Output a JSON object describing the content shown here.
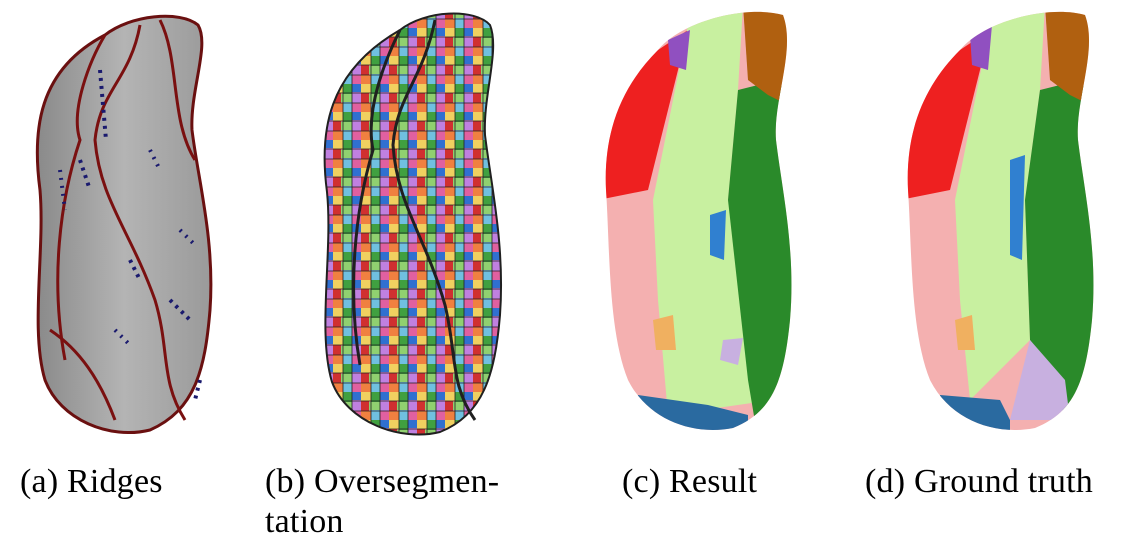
{
  "figure": {
    "panels": [
      {
        "id": "a",
        "caption": "(a) Ridges",
        "colors": {
          "surface": "#a8a8a8",
          "ridge": "#7a1010",
          "valley": "#1a1a6e"
        }
      },
      {
        "id": "b",
        "caption_line1": "(b)  Oversegmen-",
        "caption_line2": "tation",
        "colors": {
          "palette": [
            "#e8a0a0",
            "#f0d060",
            "#40a040",
            "#3070d0",
            "#d03030",
            "#90d070",
            "#c080e0",
            "#f08040",
            "#70c0e0",
            "#e060a0",
            "#a0e0a0",
            "#202020"
          ]
        }
      },
      {
        "id": "c",
        "caption": "(c) Result",
        "colors": {
          "red": "#ee2020",
          "pink": "#f4b0b0",
          "lightgreen": "#c8f0a0",
          "darkgreen": "#2a8a2a",
          "brown": "#b06010",
          "purple": "#9050c0",
          "blue": "#3080d0",
          "orange": "#f0b060",
          "lavender": "#c8b0e0",
          "steelblue": "#2a6aa0"
        }
      },
      {
        "id": "d",
        "caption": "(d) Ground truth",
        "colors": {
          "red": "#ee2020",
          "pink": "#f4b0b0",
          "lightgreen": "#c8f0a0",
          "darkgreen": "#2a8a2a",
          "brown": "#b06010",
          "purple": "#9050c0",
          "blue": "#3080d0",
          "orange": "#f0b060",
          "lavender": "#c8b0e0",
          "steelblue": "#2a6aa0"
        }
      }
    ]
  }
}
